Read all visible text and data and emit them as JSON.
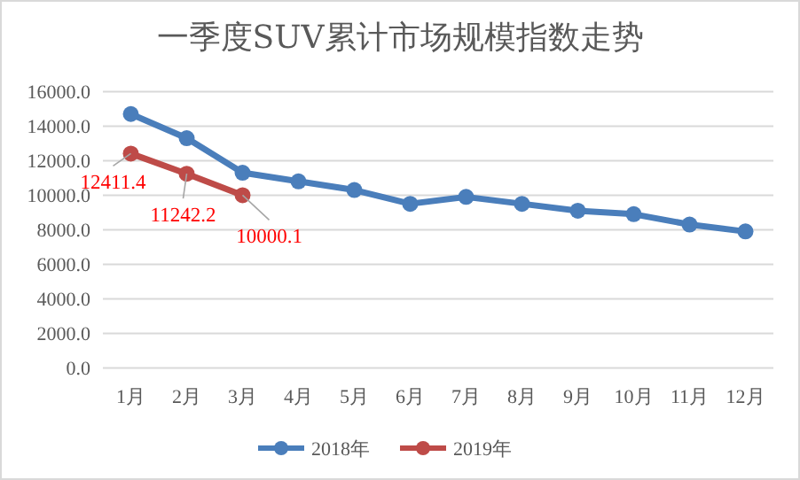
{
  "chart_data": {
    "type": "line",
    "title": "一季度SUV累计市场规模指数走势",
    "categories": [
      "1月",
      "2月",
      "3月",
      "4月",
      "5月",
      "6月",
      "7月",
      "8月",
      "9月",
      "10月",
      "11月",
      "12月"
    ],
    "series": [
      {
        "name": "2018年",
        "color": "#4a7ebb",
        "values": [
          14700,
          13300,
          11300,
          10800,
          10300,
          9500,
          9900,
          9500,
          9100,
          8900,
          8300,
          7900
        ]
      },
      {
        "name": "2019年",
        "color": "#be4b48",
        "values": [
          12411.4,
          11242.2,
          10000.1,
          null,
          null,
          null,
          null,
          null,
          null,
          null,
          null,
          null
        ],
        "value_labels": [
          "12411.4",
          "11242.2",
          "10000.1",
          null,
          null,
          null,
          null,
          null,
          null,
          null,
          null,
          null
        ]
      }
    ],
    "ylim": [
      0,
      16000
    ],
    "yticks": [
      {
        "value": 0,
        "label": "0.0"
      },
      {
        "value": 2000,
        "label": "2000.0"
      },
      {
        "value": 4000,
        "label": "4000.0"
      },
      {
        "value": 6000,
        "label": "6000.0"
      },
      {
        "value": 8000,
        "label": "8000.0"
      },
      {
        "value": 10000,
        "label": "10000.0"
      },
      {
        "value": 12000,
        "label": "12000.0"
      },
      {
        "value": 14000,
        "label": "14000.0"
      },
      {
        "value": 16000,
        "label": "16000.0"
      }
    ],
    "grid": "y",
    "legend": "bottom",
    "marker": "circle",
    "line_style": "solid"
  }
}
